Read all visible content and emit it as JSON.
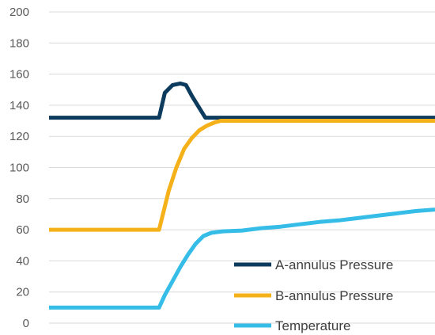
{
  "chart_data": {
    "type": "line",
    "title": "",
    "xlabel": "",
    "ylabel": "",
    "ylim": [
      0,
      200
    ],
    "yticks": [
      0,
      20,
      40,
      60,
      80,
      100,
      120,
      140,
      160,
      180,
      200
    ],
    "xlim": [
      0,
      100
    ],
    "grid": true,
    "legend_position": "bottom-right",
    "series": [
      {
        "name": "A-annulus Pressure",
        "color": "#0d3b5e",
        "points": [
          [
            0,
            132
          ],
          [
            28.5,
            132
          ],
          [
            30,
            148
          ],
          [
            32,
            153
          ],
          [
            34,
            154
          ],
          [
            35.5,
            153
          ],
          [
            37,
            146
          ],
          [
            39,
            138
          ],
          [
            40.5,
            132
          ],
          [
            100,
            132
          ]
        ]
      },
      {
        "name": "B-annulus Pressure",
        "color": "#f5b11a",
        "points": [
          [
            0,
            60
          ],
          [
            28.5,
            60
          ],
          [
            29.5,
            70
          ],
          [
            31,
            85
          ],
          [
            33,
            100
          ],
          [
            35,
            112
          ],
          [
            37,
            119
          ],
          [
            39,
            124
          ],
          [
            41,
            127
          ],
          [
            43,
            129
          ],
          [
            44.5,
            130
          ],
          [
            100,
            130
          ]
        ]
      },
      {
        "name": "Temperature",
        "color": "#35bde8",
        "points": [
          [
            0,
            10
          ],
          [
            28.5,
            10
          ],
          [
            30,
            18
          ],
          [
            32,
            27
          ],
          [
            34,
            36
          ],
          [
            36,
            44
          ],
          [
            38,
            51
          ],
          [
            40,
            56
          ],
          [
            42,
            58
          ],
          [
            45,
            59
          ],
          [
            50,
            59.5
          ],
          [
            55,
            61
          ],
          [
            60,
            62
          ],
          [
            65,
            63.5
          ],
          [
            70,
            65
          ],
          [
            75,
            66
          ],
          [
            80,
            67.5
          ],
          [
            85,
            69
          ],
          [
            90,
            70.5
          ],
          [
            95,
            72
          ],
          [
            100,
            73
          ]
        ]
      }
    ]
  }
}
